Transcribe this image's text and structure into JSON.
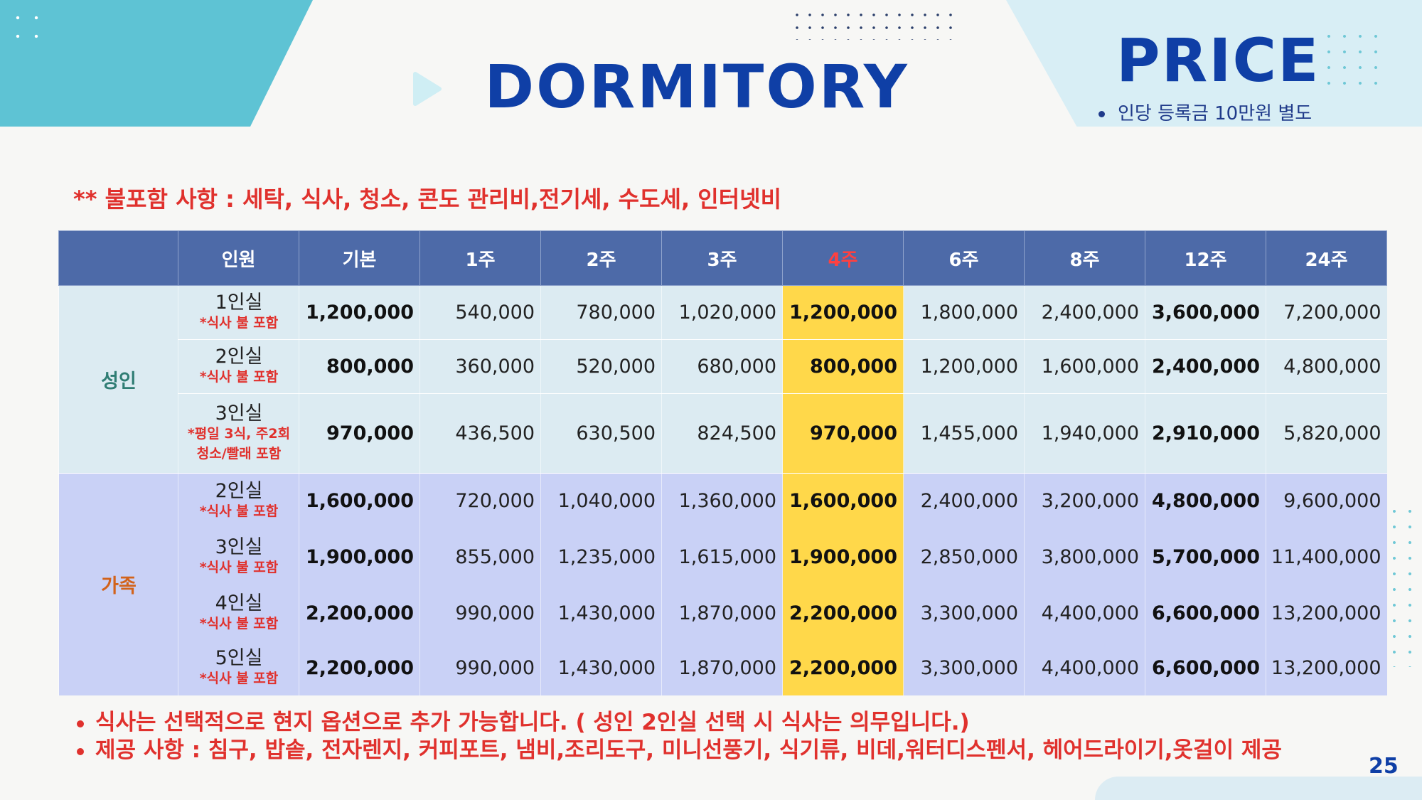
{
  "header": {
    "title": "DORMITORY",
    "price_label": "PRICE",
    "note": "인당 등록금 10만원 별도"
  },
  "excluded_items": "** 불포함 사항 : 세탁, 식사, 청소, 콘도 관리비,전기세, 수도세, 인터넷비",
  "table": {
    "headers": [
      "",
      "인원",
      "기본",
      "1주",
      "2주",
      "3주",
      "4주",
      "6주",
      "8주",
      "12주",
      "24주"
    ],
    "groups": {
      "adult": "성인",
      "family": "가족"
    },
    "rows": [
      {
        "room": "1인실",
        "note": "*식사 불 포함",
        "values": [
          "1,200,000",
          "540,000",
          "780,000",
          "1,020,000",
          "1,200,000",
          "1,800,000",
          "2,400,000",
          "3,600,000",
          "7,200,000"
        ]
      },
      {
        "room": "2인실",
        "note": "*식사 불 포함",
        "values": [
          "800,000",
          "360,000",
          "520,000",
          "680,000",
          "800,000",
          "1,200,000",
          "1,600,000",
          "2,400,000",
          "4,800,000"
        ]
      },
      {
        "room": "3인실",
        "note": "*평일 3식, 주2회",
        "note2": "청소/빨래 포함",
        "values": [
          "970,000",
          "436,500",
          "630,500",
          "824,500",
          "970,000",
          "1,455,000",
          "1,940,000",
          "2,910,000",
          "5,820,000"
        ]
      },
      {
        "room": "2인실",
        "note": "*식사 불 포함",
        "values": [
          "1,600,000",
          "720,000",
          "1,040,000",
          "1,360,000",
          "1,600,000",
          "2,400,000",
          "3,200,000",
          "4,800,000",
          "9,600,000"
        ]
      },
      {
        "room": "3인실",
        "note": "*식사 불 포함",
        "values": [
          "1,900,000",
          "855,000",
          "1,235,000",
          "1,615,000",
          "1,900,000",
          "2,850,000",
          "3,800,000",
          "5,700,000",
          "11,400,000"
        ]
      },
      {
        "room": "4인실",
        "note": "*식사 불 포함",
        "values": [
          "2,200,000",
          "990,000",
          "1,430,000",
          "1,870,000",
          "2,200,000",
          "3,300,000",
          "4,400,000",
          "6,600,000",
          "13,200,000"
        ]
      },
      {
        "room": "5인실",
        "note": "*식사 불 포함",
        "values": [
          "2,200,000",
          "990,000",
          "1,430,000",
          "1,870,000",
          "2,200,000",
          "3,300,000",
          "4,400,000",
          "6,600,000",
          "13,200,000"
        ]
      }
    ]
  },
  "footer": {
    "notes": [
      "식사는  선택적으로 현지 옵션으로  추가 가능합니다. ( 성인 2인실 선택 시 식사는 의무입니다.)",
      "제공 사항 : 침구, 밥솥, 전자렌지, 커피포트, 냄비,조리도구, 미니선풍기, 식기류, 비데,워터디스펜서,  헤어드라이기,옷걸이 제공"
    ],
    "page_number": "25"
  },
  "colors": {
    "title_blue": "#0f3fa6",
    "header_bg": "#4d6aa8",
    "highlight_yellow": "#ffd84a",
    "accent_red": "#e0312d",
    "adult_row_bg": "#dcebf2",
    "family_row_bg": "#c9d1f6"
  }
}
